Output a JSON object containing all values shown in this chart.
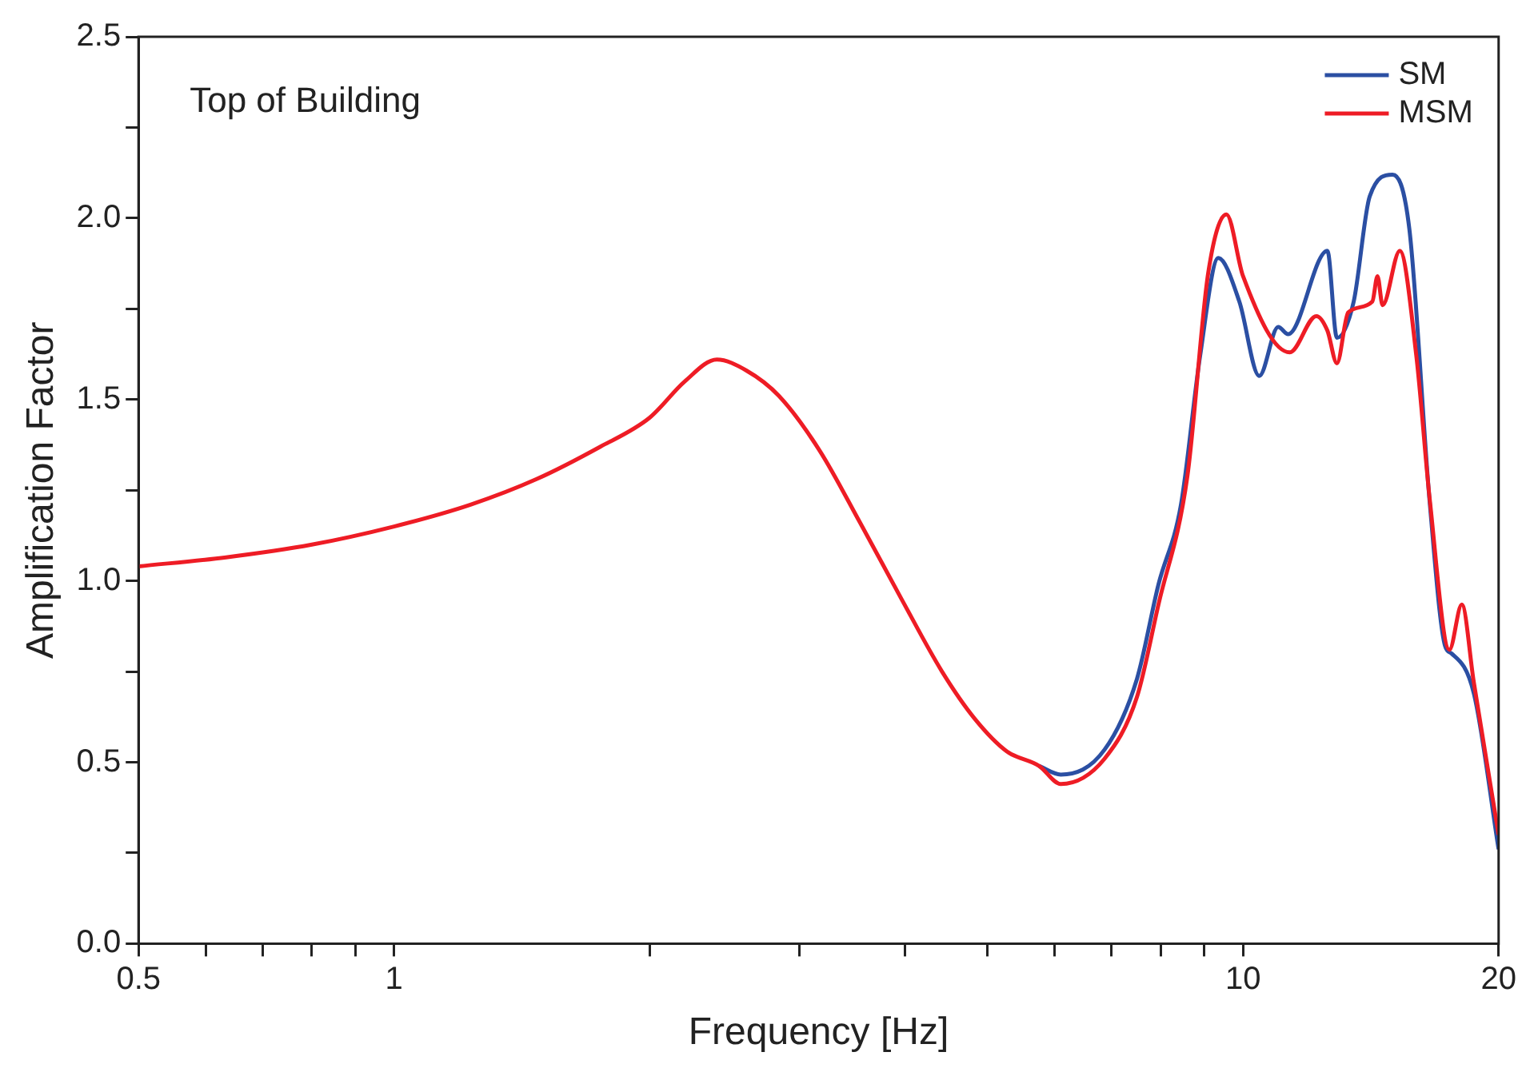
{
  "chart_data": {
    "type": "line",
    "xlabel": "Frequency [Hz]",
    "ylabel": "Amplification Factor",
    "annotations": [
      "Top of Building"
    ],
    "log": "x",
    "grid": false,
    "legend": "top right",
    "marker": "none",
    "line_style": "solid",
    "xlim": [
      0.5,
      20
    ],
    "xticks": [
      0.5,
      {
        "value": 0.6,
        "label": null
      },
      {
        "value": 0.7,
        "label": null
      },
      {
        "value": 0.8,
        "label": null
      },
      {
        "value": 0.9,
        "label": null
      },
      1,
      {
        "value": 2,
        "label": null
      },
      {
        "value": 3,
        "label": null
      },
      {
        "value": 4,
        "label": null
      },
      {
        "value": 5,
        "label": null
      },
      {
        "value": 6,
        "label": null
      },
      {
        "value": 7,
        "label": null
      },
      {
        "value": 8,
        "label": null
      },
      {
        "value": 9,
        "label": null
      },
      10,
      20
    ],
    "ylim": [
      0,
      2.5
    ],
    "yticks": [
      {
        "value": 0,
        "label": "0.0"
      },
      {
        "value": 0.25,
        "label": null
      },
      0.5,
      {
        "value": 0.75,
        "label": null
      },
      {
        "value": 1,
        "label": "1.0"
      },
      {
        "value": 1.25,
        "label": null
      },
      1.5,
      {
        "value": 1.75,
        "label": null
      },
      {
        "value": 2,
        "label": "2.0"
      },
      {
        "value": 2.25,
        "label": null
      },
      2.5
    ],
    "series": [
      {
        "name": "SM",
        "color": "#2b4fa3",
        "x": [
          5.75,
          6.1,
          6.87,
          7.5,
          7.95,
          8.45,
          8.9,
          9.35,
          9.9,
          10.45,
          11.0,
          11.3,
          12.57,
          12.9,
          13.5,
          14.1,
          15.0,
          15.7,
          16.6,
          17.3,
          17.6,
          18.7,
          20
        ],
        "values": [
          0.49,
          0.466,
          0.535,
          0.73,
          0.99,
          1.21,
          1.62,
          1.89,
          1.77,
          1.565,
          1.7,
          1.68,
          1.91,
          1.67,
          1.77,
          2.06,
          2.12,
          1.97,
          1.21,
          0.82,
          0.8,
          0.69,
          0.26
        ]
      },
      {
        "name": "MSM",
        "color": "#ee1c25",
        "x": [
          0.5,
          0.634,
          0.8,
          1,
          1.23,
          1.47,
          1.75,
          2.0,
          2.2,
          2.4,
          2.6,
          2.84,
          3.17,
          3.54,
          3.96,
          4.42,
          4.83,
          5.27,
          5.75,
          6.1,
          6.87,
          7.5,
          7.95,
          8.6,
          9.1,
          9.56,
          10.0,
          11.35,
          12.2,
          12.57,
          12.9,
          13.3,
          14.2,
          14.4,
          14.6,
          15.3,
          16.0,
          16.6,
          17.5,
          18.1,
          18.7,
          20
        ],
        "values": [
          1.04,
          1.065,
          1.1,
          1.15,
          1.21,
          1.28,
          1.37,
          1.45,
          1.55,
          1.61,
          1.58,
          1.51,
          1.36,
          1.16,
          0.95,
          0.75,
          0.62,
          0.53,
          0.49,
          0.44,
          0.51,
          0.68,
          0.935,
          1.29,
          1.85,
          2.01,
          1.84,
          1.63,
          1.73,
          1.69,
          1.6,
          1.74,
          1.77,
          1.84,
          1.76,
          1.91,
          1.62,
          1.22,
          0.81,
          0.935,
          0.72,
          0.3
        ]
      }
    ]
  }
}
